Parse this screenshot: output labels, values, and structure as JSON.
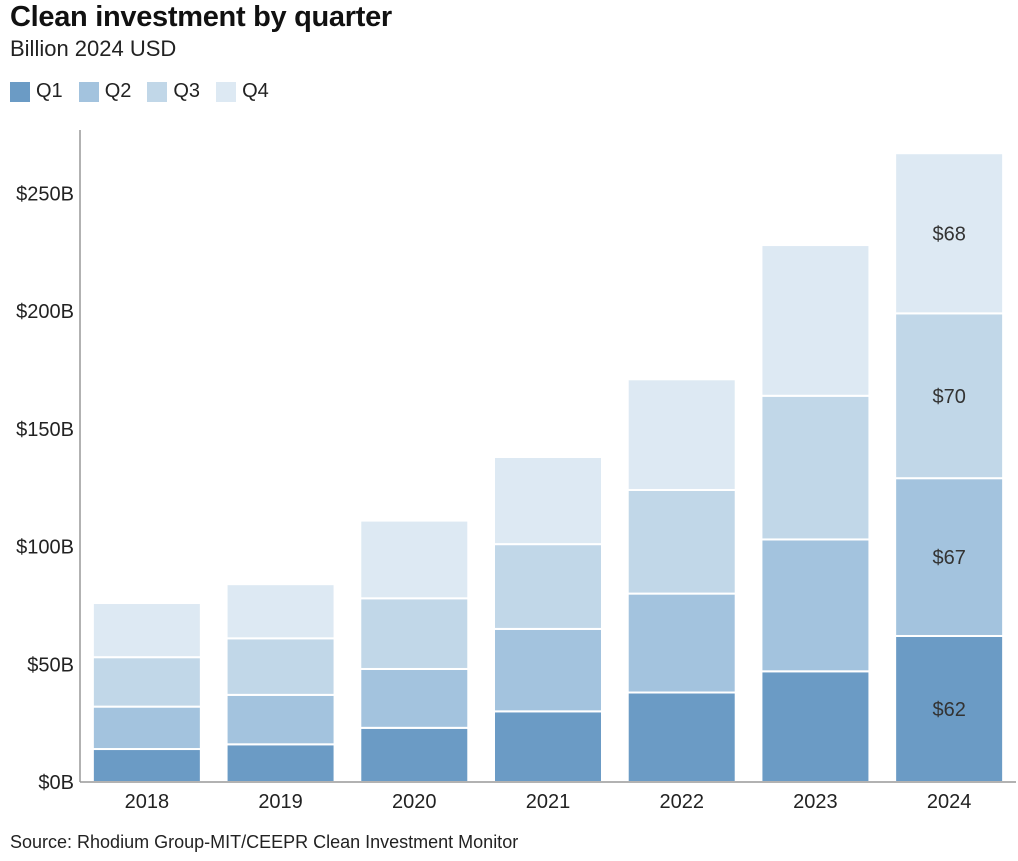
{
  "title": "Clean investment by quarter",
  "subtitle": "Billion 2024 USD",
  "source": "Source: Rhodium Group-MIT/CEEPR Clean Investment Monitor",
  "legend": [
    {
      "label": "Q1",
      "color": "#6b9bc5"
    },
    {
      "label": "Q2",
      "color": "#a3c3de"
    },
    {
      "label": "Q3",
      "color": "#c1d7e8"
    },
    {
      "label": "Q4",
      "color": "#dde9f3"
    }
  ],
  "chart_data": {
    "type": "bar",
    "stacked": true,
    "title": "Clean investment by quarter",
    "subtitle": "Billion 2024 USD",
    "xlabel": "",
    "ylabel": "",
    "ylim": [
      0,
      275
    ],
    "yticks": [
      0,
      50,
      100,
      150,
      200,
      250
    ],
    "ytick_labels": [
      "$0B",
      "$50B",
      "$100B",
      "$150B",
      "$200B",
      "$250B"
    ],
    "categories": [
      "2018",
      "2019",
      "2020",
      "2021",
      "2022",
      "2023",
      "2024"
    ],
    "series": [
      {
        "name": "Q1",
        "color": "#6b9bc5",
        "values": [
          14,
          16,
          23,
          30,
          38,
          47,
          62
        ]
      },
      {
        "name": "Q2",
        "color": "#a3c3de",
        "values": [
          18,
          21,
          25,
          35,
          42,
          56,
          67
        ]
      },
      {
        "name": "Q3",
        "color": "#c1d7e8",
        "values": [
          21,
          24,
          30,
          36,
          44,
          61,
          70
        ]
      },
      {
        "name": "Q4",
        "color": "#dde9f3",
        "values": [
          23,
          23,
          33,
          37,
          47,
          64,
          68
        ]
      }
    ],
    "data_labels": [
      {
        "category": "2024",
        "series": "Q1",
        "text": "$62"
      },
      {
        "category": "2024",
        "series": "Q2",
        "text": "$67"
      },
      {
        "category": "2024",
        "series": "Q3",
        "text": "$70"
      },
      {
        "category": "2024",
        "series": "Q4",
        "text": "$68"
      }
    ]
  }
}
